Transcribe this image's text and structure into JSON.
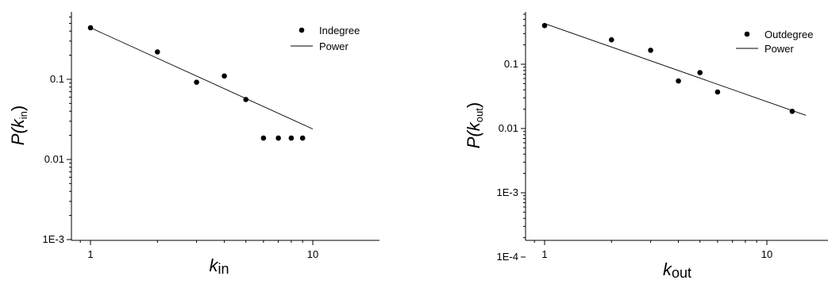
{
  "chart_data": [
    {
      "type": "scatter",
      "title": "",
      "xlabel": "k",
      "xlabel_sub": "in",
      "ylabel": "P(k",
      "ylabel_sub": "in",
      "ylabel_close": ")",
      "x_scale": "log",
      "y_scale": "log",
      "xlim": [
        0.72,
        20
      ],
      "ylim": [
        0.001,
        0.9
      ],
      "x_ticks": [
        1,
        10
      ],
      "x_tick_labels": [
        "1",
        "10"
      ],
      "y_ticks": [
        0.001,
        0.01,
        0.1
      ],
      "y_tick_labels": [
        "1E-3",
        "0.01",
        "0.1"
      ],
      "grid": false,
      "legend_position": "top-right",
      "series": [
        {
          "name": "Indegree",
          "kind": "points",
          "x": [
            1,
            2,
            3,
            4,
            5,
            6,
            7,
            8,
            9
          ],
          "y": [
            0.44,
            0.22,
            0.092,
            0.11,
            0.056,
            0.0185,
            0.0185,
            0.0185,
            0.0185
          ]
        },
        {
          "name": "Power",
          "kind": "line",
          "x": [
            1,
            10
          ],
          "y": [
            0.44,
            0.024
          ]
        }
      ]
    },
    {
      "type": "scatter",
      "title": "",
      "xlabel": "k",
      "xlabel_sub": "out",
      "ylabel": "P(k",
      "ylabel_sub": "out",
      "ylabel_close": ")",
      "x_scale": "log",
      "y_scale": "log",
      "xlim": [
        0.72,
        20
      ],
      "ylim": [
        0.0001,
        0.9
      ],
      "x_ticks": [
        1,
        10
      ],
      "x_tick_labels": [
        "1",
        "10"
      ],
      "y_ticks": [
        0.0001,
        0.001,
        0.01,
        0.1
      ],
      "y_tick_labels": [
        "1E-4",
        "1E-3",
        "0.01",
        "0.1"
      ],
      "grid": false,
      "legend_position": "top-right",
      "series": [
        {
          "name": "Outdegree",
          "kind": "points",
          "x": [
            1,
            2,
            3,
            4,
            5,
            6,
            13
          ],
          "y": [
            0.4,
            0.24,
            0.165,
            0.055,
            0.074,
            0.037,
            0.0185
          ]
        },
        {
          "name": "Power",
          "kind": "line",
          "x": [
            1,
            15
          ],
          "y": [
            0.43,
            0.016
          ]
        }
      ]
    }
  ]
}
